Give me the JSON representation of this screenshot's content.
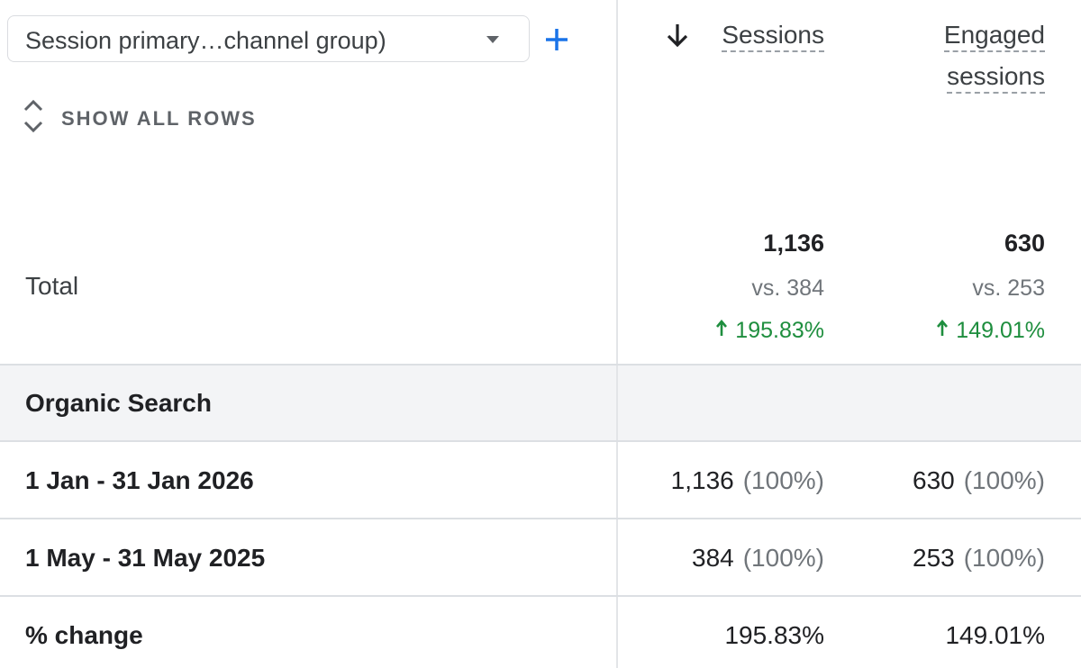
{
  "toolbar": {
    "dimension": "Session primary…channel group)",
    "show_all_rows": "SHOW ALL ROWS"
  },
  "columns": [
    {
      "label": "Sessions",
      "sorted": true
    },
    {
      "label": "Engaged sessions",
      "sorted": false
    }
  ],
  "total": {
    "label": "Total",
    "cells": [
      {
        "value": "1,136",
        "comparison": "vs. 384",
        "change": "195.83%"
      },
      {
        "value": "630",
        "comparison": "vs. 253",
        "change": "149.01%"
      }
    ]
  },
  "group": "Organic Search",
  "rows": [
    {
      "label": "1 Jan - 31 Jan 2026",
      "cells": [
        {
          "value": "1,136",
          "share": "(100%)"
        },
        {
          "value": "630",
          "share": "(100%)"
        }
      ]
    },
    {
      "label": "1 May - 31 May 2025",
      "cells": [
        {
          "value": "384",
          "share": "(100%)"
        },
        {
          "value": "253",
          "share": "(100%)"
        }
      ]
    },
    {
      "label": "% change",
      "cells": [
        {
          "value": "195.83%"
        },
        {
          "value": "149.01%"
        }
      ]
    }
  ]
}
